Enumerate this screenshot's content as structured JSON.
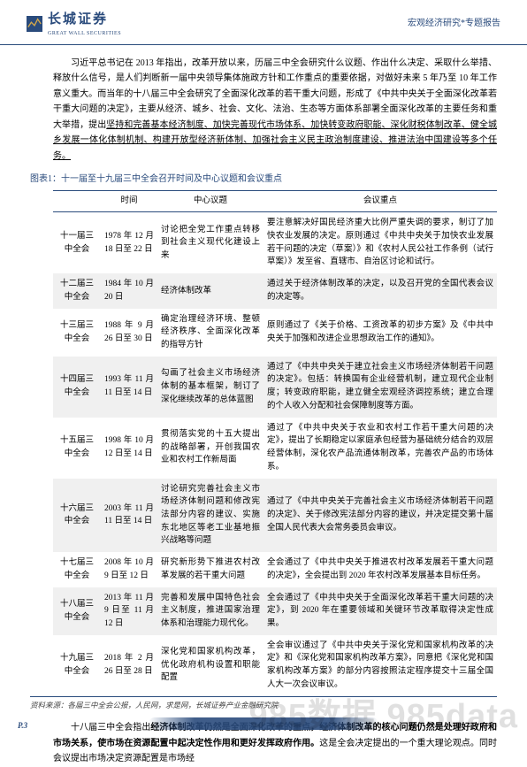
{
  "header": {
    "logo_cn": "长城证券",
    "logo_en": "GREAT WALL SECURITIES",
    "right": "宏观经济研究*专题报告"
  },
  "intro": "习近平总书记在 2013 年指出，改革开放以来，历届三中全会研究什么议题、作出什么决定、采取什么举措、释放什么信号，是人们判断新一届中央领导集体施政方针和工作重点的重要依据，对做好未来 5 年乃至 10 年工作意义重大。而当年的十八届三中全会研究了全面深化改革的若干重大问题，形成了《中共中央关于全面深化改革若干重大问题的决定》，主要从经济、城乡、社会、文化、法治、生态等方面体系部署全面深化改革的主要任务和重大举措，提出",
  "intro_underline": "坚持和完善基本经济制度、加快完善现代市场体系、加快转变政府职能、深化财税体制改革、健全城乡发展一体化体制机制、构建开放型经济新体制、加强社会主义民主政治制度建设、推进法治中国建设等多个任务。",
  "table": {
    "title": "图表1：十一届至十九届三中全会召开时间及中心议题和会议重点",
    "columns": [
      "",
      "时间",
      "中心议题",
      "会议重点"
    ],
    "rows": [
      {
        "name": "十一届三中全会",
        "time": "1978 年 12 月 18 日至 22 日",
        "topic": "讨论把全党工作重点转移到社会主义现代化建设上来",
        "focus": "要注意解决好国民经济重大比例严重失调的要求，制订了加快农业发展的决定。原则通过《中共中央关于加快农业发展若干问题的决定（草案）》和《农村人民公社工作条例（试行草案）》发至省、直辖市、自治区讨论和试行。"
      },
      {
        "name": "十二届三中全会",
        "time": "1984 年 10 月 20 日",
        "topic": "经济体制改革",
        "focus": "通过关于经济体制改革的决定，以及召开党的全国代表会议的决定等。"
      },
      {
        "name": "十三届三中全会",
        "time": "1988 年 9 月 26 日至 30 日",
        "topic": "确定治理经济环境、整顿经济秩序、全面深化改革的指导方针",
        "focus": "原则通过了《关于价格、工资改革的初步方案》及《中共中央关于加强和改进企业思想政治工作的通知》。"
      },
      {
        "name": "十四届三中全会",
        "time": "1993 年 11 月 11 日至 14 日",
        "topic": "勾画了社会主义市场经济体制的基本框架，制订了深化继续改革的总体蓝图",
        "focus": "通过了《中共中央关于建立社会主义市场经济体制若干问题的决定》。包括：转换国有企业经营机制，建立现代企业制度；转变政府职能，建立健全宏观经济调控系统；建立合理的个人收入分配和社会保障制度等方面。"
      },
      {
        "name": "十五届三中全会",
        "time": "1998 年 10 月 12 日至 14 日",
        "topic": "贯彻落实党的十五大提出的战略部署，开创我国农业和农村工作新局面",
        "focus": "通过了《中共中央关于农业和农村工作若干重大问题的决定》，提出了长期稳定以家庭承包经营为基础统分结合的双层经营体制，深化农产品流通体制改革，完善农产品的市场体系。"
      },
      {
        "name": "十六届三中全会",
        "time": "2003 年 11 月 11 日至 14 日",
        "topic": "讨论研究完善社会主义市场经济体制问题和修改宪法部分内容的建议、实施东北地区等老工业基地振兴战略等问题",
        "focus": "通过了《中共中央关于完善社会主义市场经济体制若干问题的决定》、关于修改宪法部分内容的建议，并决定提交第十届全国人民代表大会常务委员会审议。"
      },
      {
        "name": "十七届三中全会",
        "time": "2008 年 10 月 9 日至 12 日",
        "topic": "研究新形势下推进农村改革发展的若干重大问题",
        "focus": "全会通过了《中共中央关于推进农村改革发展若干重大问题的决定》，全会提出到 2020 年农村改革发展基本目标任务。"
      },
      {
        "name": "十八届三中全会",
        "time": "2013 年 11 月 9 日至 11 月 12 日",
        "topic": "完善和发展中国特色社会主义制度，推进国家治理体系和治理能力现代化。",
        "focus": "全会通过了《中共中央关于全面深化改革若干重大问题的决定》，到 2020 年在重要领域和关键环节改革取得决定性成果。"
      },
      {
        "name": "十九届三中全会",
        "time": "2018 年 2 月 26 日至 28 日",
        "topic": "深化党和国家机构改革，优化政府机构设置和职能配置",
        "focus": "全会审议通过了《中共中央关于深化党和国家机构改革的决定》和《深化党和国家机构改革方案》，同意把《深化党和国家机构改革方案》的部分内容按照法定程序提交十三届全国人大一次会议审议。"
      }
    ],
    "source": "资料来源：各届三中全会公报，人民网，求是网，长城证券产业金融研究院"
  },
  "outro_plain": "十八届三中全会指出",
  "outro_bold": "经济体制改革仍然是全面深化改革的重点，经济体制改革的核心问题仍然是处理好政府和市场关系，使市场在资源配置中起决定性作用和更好发挥政府作用。",
  "outro_tail": "这是全会决定提出的一个重大理论观点。同时会议提出市场决定资源配置是市场经",
  "page": "P.3",
  "watermark": "985数据 985data"
}
